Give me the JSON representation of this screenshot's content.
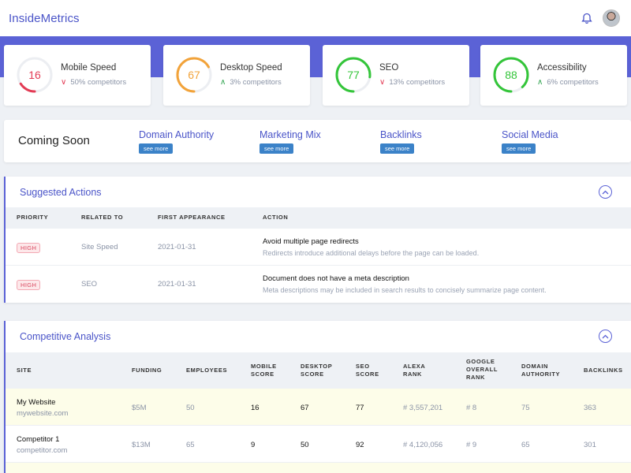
{
  "app": {
    "title": "InsideMetrics"
  },
  "header": {
    "bell_icon": "bell-icon",
    "avatar_icon": "user-avatar"
  },
  "metrics": [
    {
      "title": "Mobile Speed",
      "value": "16",
      "score": 16,
      "color": "#e33b54",
      "trend": "down",
      "sub": "50% competitors"
    },
    {
      "title": "Desktop Speed",
      "value": "67",
      "score": 67,
      "color": "#f2a33a",
      "trend": "up",
      "sub": "3% competitors"
    },
    {
      "title": "SEO",
      "value": "77",
      "score": 77,
      "color": "#34c53a",
      "trend": "down",
      "sub": "13% competitors"
    },
    {
      "title": "Accessibility",
      "value": "88",
      "score": 88,
      "color": "#34c53a",
      "trend": "up",
      "sub": "6% competitors"
    }
  ],
  "coming_soon": {
    "title": "Coming Soon",
    "see_more": "see more",
    "items": [
      "Domain Authority",
      "Marketing Mix",
      "Backlinks",
      "Social Media"
    ]
  },
  "suggested": {
    "title": "Suggested Actions",
    "headers": [
      "PRIORITY",
      "RELATED TO",
      "FIRST APPEARANCE",
      "ACTION"
    ],
    "rows": [
      {
        "priority": "HIGH",
        "related": "Site Speed",
        "date": "2021-01-31",
        "action": "Avoid multiple page redirects",
        "desc": "Redirects introduce additional delays before the page can be loaded."
      },
      {
        "priority": "HIGH",
        "related": "SEO",
        "date": "2021-01-31",
        "action": "Document does not have a meta description",
        "desc": "Meta descriptions may be included in search results to concisely summarize page content."
      }
    ]
  },
  "competitive": {
    "title": "Competitive Analysis",
    "headers": [
      "SITE",
      "FUNDING",
      "EMPLOYEES",
      "MOBILE\nSCORE",
      "DESKTOP\nSCORE",
      "SEO\nSCORE",
      "ALEXA\nRANK",
      "GOOGLE\nOVERALL\nRANK",
      "DOMAIN\nAUTHORITY",
      "BACKLINKS"
    ],
    "rows": [
      {
        "name": "My Website",
        "url": "mywebsite.com",
        "funding": "$5M",
        "employees": "50",
        "mobile": "16",
        "desktop": "67",
        "seo": "77",
        "alexa": "# 3,557,201",
        "google": "# 8",
        "domain": "75",
        "backlinks": "363"
      },
      {
        "name": "Competitor 1",
        "url": "competitor.com",
        "funding": "$13M",
        "employees": "65",
        "mobile": "9",
        "desktop": "50",
        "seo": "92",
        "alexa": "# 4,120,056",
        "google": "# 9",
        "domain": "65",
        "backlinks": "301"
      }
    ]
  }
}
